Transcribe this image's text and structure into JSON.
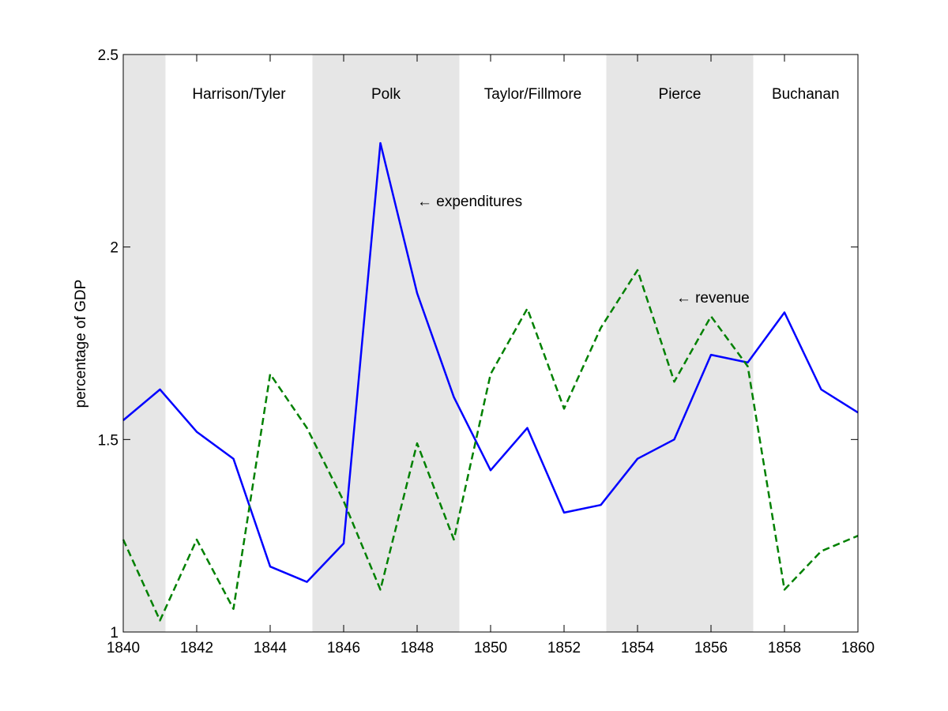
{
  "chart_data": {
    "type": "line",
    "title": "",
    "xlabel": "",
    "ylabel": "percentage of GDP",
    "xlim": [
      1840,
      1860
    ],
    "ylim": [
      1,
      2.5
    ],
    "xticks": [
      1840,
      1842,
      1844,
      1846,
      1848,
      1850,
      1852,
      1854,
      1856,
      1858,
      1860
    ],
    "yticks": [
      {
        "value": 1,
        "label": "1"
      },
      {
        "value": 1.5,
        "label": "1.5"
      },
      {
        "value": 2,
        "label": "2"
      },
      {
        "value": 2.5,
        "label": "2.5"
      }
    ],
    "grid": false,
    "legend": "none",
    "eras": [
      {
        "label": "",
        "start": 1840,
        "end": 1841.15,
        "shaded": true
      },
      {
        "label": "Harrison/Tyler",
        "start": 1841.15,
        "end": 1845.15,
        "shaded": false
      },
      {
        "label": "Polk",
        "start": 1845.15,
        "end": 1849.15,
        "shaded": true
      },
      {
        "label": "Taylor/Fillmore",
        "start": 1849.15,
        "end": 1853.15,
        "shaded": false
      },
      {
        "label": "Pierce",
        "start": 1853.15,
        "end": 1857.15,
        "shaded": true
      },
      {
        "label": "Buchanan",
        "start": 1857.15,
        "end": 1860,
        "shaded": false
      }
    ],
    "x": [
      1840,
      1841,
      1842,
      1843,
      1844,
      1845,
      1846,
      1847,
      1848,
      1849,
      1850,
      1851,
      1852,
      1853,
      1854,
      1855,
      1856,
      1857,
      1858,
      1859,
      1860
    ],
    "series": [
      {
        "name": "expenditures",
        "color": "#0000ff",
        "dash": "solid",
        "values": [
          1.55,
          1.63,
          1.52,
          1.45,
          1.17,
          1.13,
          1.23,
          2.27,
          1.88,
          1.61,
          1.42,
          1.53,
          1.31,
          1.33,
          1.45,
          1.5,
          1.72,
          1.7,
          1.83,
          1.63,
          1.57
        ]
      },
      {
        "name": "revenue",
        "color": "#008000",
        "dash": "dashed",
        "values": [
          1.24,
          1.03,
          1.24,
          1.06,
          1.67,
          1.53,
          1.34,
          1.11,
          1.49,
          1.24,
          1.67,
          1.84,
          1.58,
          1.79,
          1.94,
          1.65,
          1.82,
          1.69,
          1.11,
          1.21,
          1.25
        ]
      }
    ],
    "annotations": [
      {
        "text": "← expenditures",
        "x": 1848,
        "y": 2.12
      },
      {
        "text": "← revenue",
        "x": 1855.05,
        "y": 1.87
      }
    ]
  }
}
